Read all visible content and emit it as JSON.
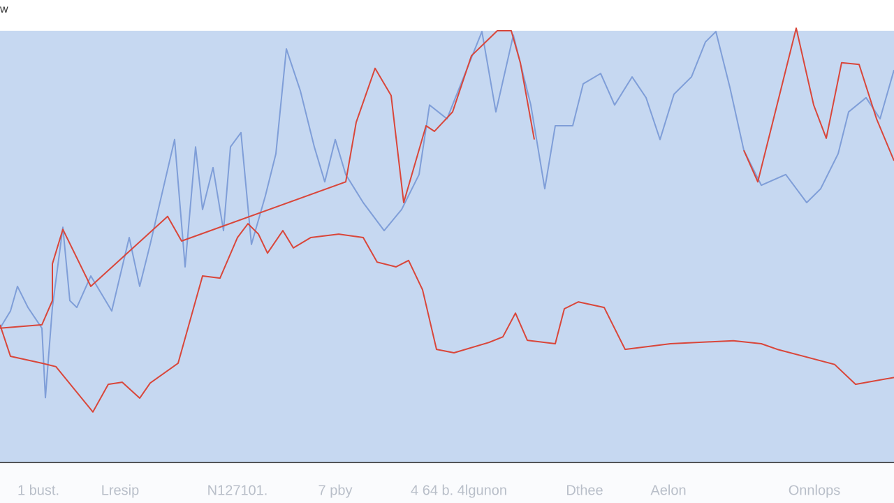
{
  "chart_data": {
    "type": "line",
    "title": "w",
    "xlim": [
      0,
      1280
    ],
    "ylim": [
      0,
      100
    ],
    "x_labels": [
      "1 bust.",
      "Lresip",
      "N127101.",
      "7 pby",
      "4 64 b. 4lgunon",
      "Dthee",
      "Aelon",
      "Onnlops"
    ],
    "series": [
      {
        "color": "#7f9ed8",
        "x": [
          0,
          15,
          25,
          40,
          60,
          65,
          75,
          90,
          100,
          110,
          130,
          160,
          185,
          200,
          215,
          250,
          265,
          280,
          290,
          305,
          320,
          330,
          345,
          360,
          380,
          395,
          410,
          430,
          450,
          465,
          480,
          495,
          520,
          550,
          575,
          600,
          615,
          640,
          660,
          690,
          710,
          735,
          760,
          780,
          795,
          820,
          835,
          860,
          880,
          905,
          925,
          945,
          965,
          990,
          1010,
          1025,
          1045,
          1065,
          1090,
          1125,
          1155,
          1175,
          1200,
          1215,
          1240,
          1260,
          1280
        ],
        "values": [
          31.1,
          35.1,
          40.8,
          35.9,
          31.1,
          15.0,
          35.9,
          54.5,
          37.5,
          35.9,
          43.2,
          35.1,
          52.1,
          40.8,
          50.5,
          74.8,
          45.3,
          73.1,
          58.6,
          68.3,
          53.7,
          73.1,
          76.4,
          50.5,
          61.8,
          71.5,
          95.8,
          86.1,
          73.1,
          65.0,
          74.8,
          66.7,
          60.2,
          53.7,
          58.6,
          66.7,
          82.8,
          79.6,
          87.7,
          99.8,
          81.2,
          99.0,
          82.8,
          63.4,
          78.0,
          78.0,
          87.7,
          90.1,
          82.8,
          89.3,
          84.5,
          74.8,
          85.3,
          89.3,
          97.4,
          99.8,
          86.9,
          72.3,
          64.2,
          66.7,
          60.2,
          63.4,
          71.5,
          81.2,
          84.5,
          79.6,
          90.9
        ]
      },
      {
        "color": "#d9463a",
        "x": [
          0,
          15,
          60,
          80,
          133,
          155,
          175,
          200,
          215,
          255,
          290,
          315,
          340,
          355,
          370,
          383,
          405,
          420,
          445,
          485,
          520,
          540,
          567,
          585,
          605,
          625,
          650,
          700,
          720,
          738,
          755,
          795,
          808,
          828,
          865,
          895,
          960,
          1050,
          1090,
          1113,
          1195,
          1225,
          1280
        ],
        "values": [
          31.9,
          24.6,
          23.0,
          22.2,
          11.7,
          18.1,
          18.6,
          14.9,
          18.4,
          23.0,
          43.2,
          42.7,
          52.1,
          55.3,
          52.9,
          48.5,
          53.7,
          49.7,
          52.1,
          52.9,
          52.1,
          46.4,
          45.3,
          46.8,
          40.0,
          26.2,
          25.4,
          27.8,
          29.1,
          34.6,
          28.3,
          27.5,
          35.6,
          37.2,
          35.9,
          26.2,
          27.5,
          28.2,
          27.5,
          26.2,
          22.7,
          18.1,
          19.7
        ]
      },
      {
        "color": "#d9463a",
        "x": [
          0,
          60,
          75,
          75,
          90,
          130,
          240,
          260,
          495,
          510,
          537,
          560,
          578,
          610,
          622,
          648,
          675,
          712,
          732,
          745,
          765,
          null,
          1065,
          1085,
          1140,
          1165,
          1183,
          1205,
          1230,
          1255,
          1280
        ],
        "values": [
          31.1,
          31.9,
          37.5,
          46.0,
          54.0,
          40.8,
          57.0,
          51.3,
          65.0,
          78.8,
          91.3,
          85.0,
          60.2,
          78.0,
          76.7,
          81.2,
          94.2,
          100,
          100,
          92.6,
          74.8,
          null,
          72.3,
          65.0,
          100.6,
          82.8,
          75.1,
          92.6,
          92.2,
          79.6,
          69.9
        ]
      }
    ]
  }
}
